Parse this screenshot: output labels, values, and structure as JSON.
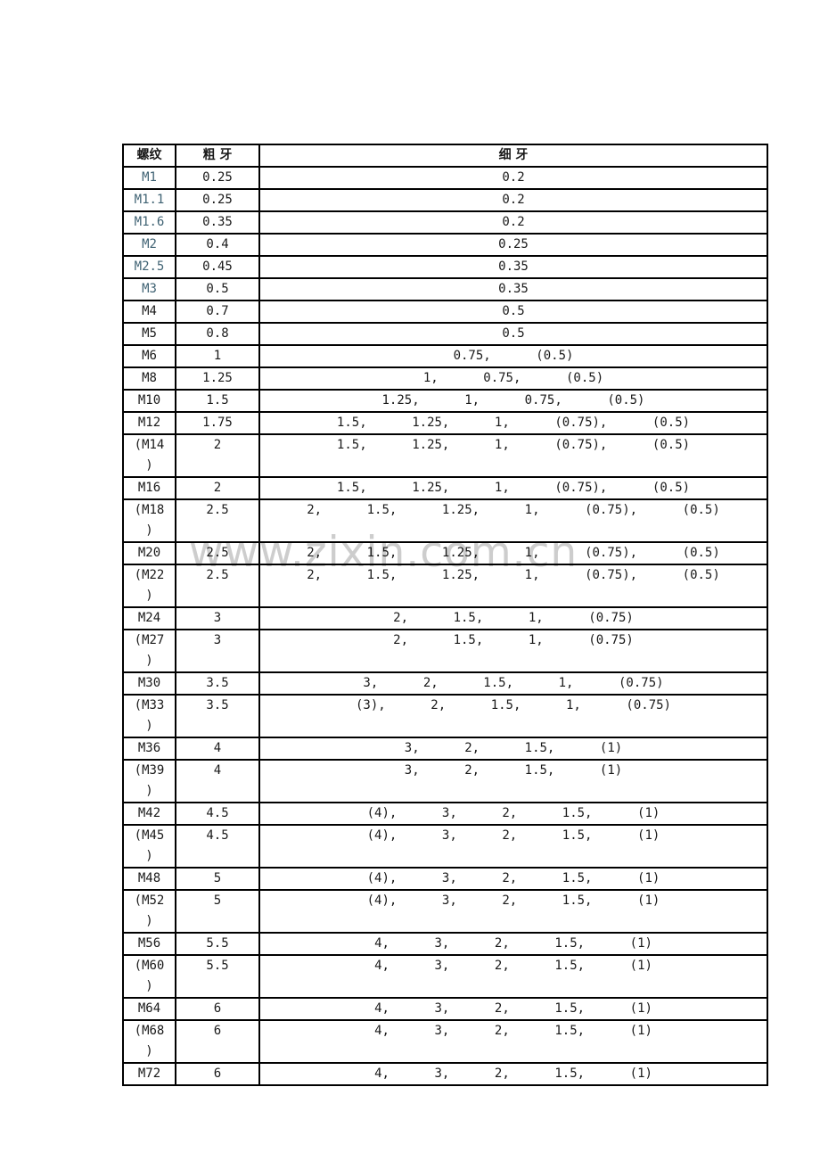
{
  "watermark": {
    "text": "www.zixin.com.cn",
    "color": "#cdcdcd"
  },
  "table": {
    "accent_color": "#3f6273",
    "headers": [
      {
        "label": "螺纹"
      },
      {
        "label": "粗 牙"
      },
      {
        "label": "细 牙"
      }
    ],
    "rows": [
      {
        "thread": "M1",
        "coarse": "0.25",
        "fine": [
          "0.2"
        ],
        "accent": true
      },
      {
        "thread": "M1.1",
        "coarse": "0.25",
        "fine": [
          "0.2"
        ],
        "accent": true
      },
      {
        "thread": "M1.6",
        "coarse": "0.35",
        "fine": [
          "0.2"
        ],
        "accent": true
      },
      {
        "thread": "M2",
        "coarse": "0.4",
        "fine": [
          "0.25"
        ],
        "accent": true
      },
      {
        "thread": "M2.5",
        "coarse": "0.45",
        "fine": [
          "0.35"
        ],
        "accent": true
      },
      {
        "thread": "M3",
        "coarse": "0.5",
        "fine": [
          "0.35"
        ],
        "accent": true
      },
      {
        "thread": "M4",
        "coarse": "0.7",
        "fine": [
          "0.5"
        ]
      },
      {
        "thread": "M5",
        "coarse": "0.8",
        "fine": [
          "0.5"
        ]
      },
      {
        "thread": "M6",
        "coarse": "1",
        "fine": [
          "0.75",
          "(0.5)"
        ]
      },
      {
        "thread": "M8",
        "coarse": "1.25",
        "fine": [
          "1",
          "0.75",
          "(0.5)"
        ]
      },
      {
        "thread": "M10",
        "coarse": "1.5",
        "fine": [
          "1.25",
          "1",
          "0.75",
          "(0.5)"
        ]
      },
      {
        "thread": "M12",
        "coarse": "1.75",
        "fine": [
          "1.5",
          "1.25",
          "1",
          "(0.75)",
          "(0.5)"
        ]
      },
      {
        "thread": "(M14)",
        "coarse": "2",
        "fine": [
          "1.5",
          "1.25",
          "1",
          "(0.75)",
          "(0.5)"
        ],
        "two_line": true
      },
      {
        "thread": "M16",
        "coarse": "2",
        "fine": [
          "1.5",
          "1.25",
          "1",
          "(0.75)",
          "(0.5)"
        ]
      },
      {
        "thread": "(M18)",
        "coarse": "2.5",
        "fine": [
          "2",
          "1.5",
          "1.25",
          "1",
          "(0.75)",
          "(0.5)"
        ],
        "two_line": true
      },
      {
        "thread": "M20",
        "coarse": "2.5",
        "fine": [
          "2",
          "1.5",
          "1.25",
          "1",
          "(0.75)",
          "(0.5)"
        ]
      },
      {
        "thread": "(M22)",
        "coarse": "2.5",
        "fine": [
          "2",
          "1.5",
          "1.25",
          "1",
          "(0.75)",
          "(0.5)"
        ],
        "two_line": true
      },
      {
        "thread": "M24",
        "coarse": "3",
        "fine": [
          "2",
          "1.5",
          "1",
          "(0.75)"
        ]
      },
      {
        "thread": "(M27)",
        "coarse": "3",
        "fine": [
          "2",
          "1.5",
          "1",
          "(0.75)"
        ],
        "two_line": true
      },
      {
        "thread": "M30",
        "coarse": "3.5",
        "fine": [
          "3",
          "2",
          "1.5",
          "1",
          "(0.75)"
        ]
      },
      {
        "thread": "(M33)",
        "coarse": "3.5",
        "fine": [
          "(3)",
          "2",
          "1.5",
          "1",
          "(0.75)"
        ],
        "two_line": true
      },
      {
        "thread": "M36",
        "coarse": "4",
        "fine": [
          "3",
          "2",
          "1.5",
          "(1)"
        ]
      },
      {
        "thread": "(M39)",
        "coarse": "4",
        "fine": [
          "3",
          "2",
          "1.5",
          "(1)"
        ],
        "two_line": true
      },
      {
        "thread": "M42",
        "coarse": "4.5",
        "fine": [
          "(4)",
          "3",
          "2",
          "1.5",
          "(1)"
        ]
      },
      {
        "thread": "(M45)",
        "coarse": "4.5",
        "fine": [
          "(4)",
          "3",
          "2",
          "1.5",
          "(1)"
        ],
        "two_line": true
      },
      {
        "thread": "M48",
        "coarse": "5",
        "fine": [
          "(4)",
          "3",
          "2",
          "1.5",
          "(1)"
        ]
      },
      {
        "thread": "(M52)",
        "coarse": "5",
        "fine": [
          "(4)",
          "3",
          "2",
          "1.5",
          "(1)"
        ],
        "two_line": true
      },
      {
        "thread": "M56",
        "coarse": "5.5",
        "fine": [
          "4",
          "3",
          "2",
          "1.5",
          "(1)"
        ]
      },
      {
        "thread": "(M60)",
        "coarse": "5.5",
        "fine": [
          "4",
          "3",
          "2",
          "1.5",
          "(1)"
        ],
        "two_line": true
      },
      {
        "thread": "M64",
        "coarse": "6",
        "fine": [
          "4",
          "3",
          "2",
          "1.5",
          "(1)"
        ]
      },
      {
        "thread": "(M68)",
        "coarse": "6",
        "fine": [
          "4",
          "3",
          "2",
          "1.5",
          "(1)"
        ],
        "two_line": true
      },
      {
        "thread": "M72",
        "coarse": "6",
        "fine": [
          "4",
          "3",
          "2",
          "1.5",
          "(1)"
        ]
      }
    ]
  }
}
